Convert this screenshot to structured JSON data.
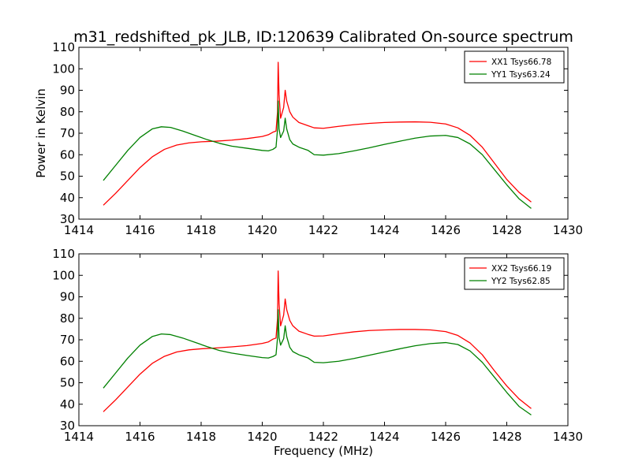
{
  "figure": {
    "title": "m31_redshifted_pk_JLB, ID:120639 Calibrated On-source spectrum",
    "xlabel": "Frequency (MHz)",
    "ylabel": "Power in Kelvin"
  },
  "chart_data": [
    {
      "type": "line",
      "title": "m31_redshifted_pk_JLB, ID:120639 Calibrated On-source spectrum",
      "xlabel": "",
      "ylabel": "Power in Kelvin",
      "xlim": [
        1414,
        1430
      ],
      "ylim": [
        30,
        110
      ],
      "xticks": [
        1414,
        1416,
        1418,
        1420,
        1422,
        1424,
        1426,
        1428,
        1430
      ],
      "yticks": [
        30,
        40,
        50,
        60,
        70,
        80,
        90,
        100,
        110
      ],
      "grid": false,
      "legend_position": "top-right",
      "series": [
        {
          "name": "XX1 Tsys66.78",
          "color": "#ff0000",
          "points": [
            [
              1414.8,
              36.5
            ],
            [
              1415.2,
              42
            ],
            [
              1415.6,
              48
            ],
            [
              1416.0,
              54
            ],
            [
              1416.4,
              59
            ],
            [
              1416.8,
              62.5
            ],
            [
              1417.2,
              64.5
            ],
            [
              1417.6,
              65.5
            ],
            [
              1418.0,
              66
            ],
            [
              1418.5,
              66.3
            ],
            [
              1419.0,
              66.8
            ],
            [
              1419.5,
              67.5
            ],
            [
              1420.0,
              68.5
            ],
            [
              1420.2,
              69.3
            ],
            [
              1420.35,
              70.5
            ],
            [
              1420.45,
              71
            ],
            [
              1420.5,
              80
            ],
            [
              1420.52,
              103
            ],
            [
              1420.55,
              88
            ],
            [
              1420.6,
              77
            ],
            [
              1420.7,
              82
            ],
            [
              1420.75,
              90
            ],
            [
              1420.8,
              85
            ],
            [
              1420.9,
              80
            ],
            [
              1421.0,
              77.5
            ],
            [
              1421.2,
              75
            ],
            [
              1421.5,
              73.5
            ],
            [
              1421.7,
              72.5
            ],
            [
              1422.0,
              72.3
            ],
            [
              1422.5,
              73.2
            ],
            [
              1423.0,
              74
            ],
            [
              1423.5,
              74.6
            ],
            [
              1424.0,
              75
            ],
            [
              1424.5,
              75.2
            ],
            [
              1425.0,
              75.3
            ],
            [
              1425.5,
              75.1
            ],
            [
              1426.0,
              74.3
            ],
            [
              1426.4,
              72.5
            ],
            [
              1426.8,
              69
            ],
            [
              1427.2,
              63.5
            ],
            [
              1427.6,
              56
            ],
            [
              1428.0,
              48.5
            ],
            [
              1428.4,
              42.5
            ],
            [
              1428.8,
              38
            ]
          ]
        },
        {
          "name": "YY1 Tsys63.24",
          "color": "#008000",
          "points": [
            [
              1414.8,
              48
            ],
            [
              1415.2,
              55
            ],
            [
              1415.6,
              62
            ],
            [
              1416.0,
              68
            ],
            [
              1416.4,
              72
            ],
            [
              1416.7,
              73
            ],
            [
              1417.0,
              72.7
            ],
            [
              1417.4,
              71
            ],
            [
              1417.8,
              69
            ],
            [
              1418.2,
              67
            ],
            [
              1418.6,
              65.3
            ],
            [
              1419.0,
              64
            ],
            [
              1419.5,
              63
            ],
            [
              1420.0,
              62
            ],
            [
              1420.2,
              61.8
            ],
            [
              1420.35,
              62.5
            ],
            [
              1420.45,
              63.5
            ],
            [
              1420.5,
              72
            ],
            [
              1420.52,
              85
            ],
            [
              1420.55,
              72
            ],
            [
              1420.6,
              68
            ],
            [
              1420.7,
              71
            ],
            [
              1420.75,
              77
            ],
            [
              1420.8,
              72
            ],
            [
              1420.9,
              67
            ],
            [
              1421.0,
              65
            ],
            [
              1421.2,
              63.5
            ],
            [
              1421.5,
              62
            ],
            [
              1421.7,
              60
            ],
            [
              1422.0,
              59.8
            ],
            [
              1422.5,
              60.5
            ],
            [
              1423.0,
              61.8
            ],
            [
              1423.5,
              63.2
            ],
            [
              1424.0,
              64.8
            ],
            [
              1424.5,
              66.3
            ],
            [
              1425.0,
              67.7
            ],
            [
              1425.5,
              68.7
            ],
            [
              1426.0,
              69
            ],
            [
              1426.4,
              68
            ],
            [
              1426.8,
              65
            ],
            [
              1427.2,
              60
            ],
            [
              1427.6,
              53
            ],
            [
              1428.0,
              46
            ],
            [
              1428.4,
              39.5
            ],
            [
              1428.8,
              35
            ]
          ]
        }
      ]
    },
    {
      "type": "line",
      "title": "",
      "xlabel": "Frequency (MHz)",
      "ylabel": "",
      "xlim": [
        1414,
        1430
      ],
      "ylim": [
        30,
        110
      ],
      "xticks": [
        1414,
        1416,
        1418,
        1420,
        1422,
        1424,
        1426,
        1428,
        1430
      ],
      "yticks": [
        30,
        40,
        50,
        60,
        70,
        80,
        90,
        100,
        110
      ],
      "grid": false,
      "legend_position": "top-right",
      "series": [
        {
          "name": "XX2 Tsys66.19",
          "color": "#ff0000",
          "points": [
            [
              1414.8,
              36.5
            ],
            [
              1415.2,
              42
            ],
            [
              1415.6,
              48
            ],
            [
              1416.0,
              54
            ],
            [
              1416.4,
              59
            ],
            [
              1416.8,
              62.3
            ],
            [
              1417.2,
              64.3
            ],
            [
              1417.6,
              65.3
            ],
            [
              1418.0,
              65.8
            ],
            [
              1418.5,
              66.2
            ],
            [
              1419.0,
              66.7
            ],
            [
              1419.5,
              67.3
            ],
            [
              1420.0,
              68.3
            ],
            [
              1420.2,
              69
            ],
            [
              1420.35,
              70.3
            ],
            [
              1420.45,
              70.8
            ],
            [
              1420.5,
              80
            ],
            [
              1420.52,
              102
            ],
            [
              1420.55,
              87
            ],
            [
              1420.6,
              76.5
            ],
            [
              1420.7,
              81.5
            ],
            [
              1420.75,
              89
            ],
            [
              1420.8,
              84
            ],
            [
              1420.9,
              79
            ],
            [
              1421.0,
              76.5
            ],
            [
              1421.2,
              74
            ],
            [
              1421.5,
              72.5
            ],
            [
              1421.7,
              71.7
            ],
            [
              1422.0,
              71.8
            ],
            [
              1422.5,
              72.8
            ],
            [
              1423.0,
              73.7
            ],
            [
              1423.5,
              74.3
            ],
            [
              1424.0,
              74.6
            ],
            [
              1424.5,
              74.8
            ],
            [
              1425.0,
              74.8
            ],
            [
              1425.5,
              74.6
            ],
            [
              1426.0,
              73.8
            ],
            [
              1426.4,
              72
            ],
            [
              1426.8,
              68.5
            ],
            [
              1427.2,
              63
            ],
            [
              1427.6,
              55.5
            ],
            [
              1428.0,
              48.5
            ],
            [
              1428.4,
              42.5
            ],
            [
              1428.8,
              38
            ]
          ]
        },
        {
          "name": "YY2 Tsys62.85",
          "color": "#008000",
          "points": [
            [
              1414.8,
              47.5
            ],
            [
              1415.2,
              54.5
            ],
            [
              1415.6,
              61.5
            ],
            [
              1416.0,
              67.5
            ],
            [
              1416.4,
              71.5
            ],
            [
              1416.7,
              72.7
            ],
            [
              1417.0,
              72.4
            ],
            [
              1417.4,
              70.8
            ],
            [
              1417.8,
              68.8
            ],
            [
              1418.2,
              66.8
            ],
            [
              1418.6,
              65
            ],
            [
              1419.0,
              63.8
            ],
            [
              1419.5,
              62.7
            ],
            [
              1420.0,
              61.7
            ],
            [
              1420.2,
              61.5
            ],
            [
              1420.35,
              62.2
            ],
            [
              1420.45,
              63
            ],
            [
              1420.5,
              71
            ],
            [
              1420.52,
              84
            ],
            [
              1420.55,
              71
            ],
            [
              1420.6,
              67.5
            ],
            [
              1420.7,
              70.5
            ],
            [
              1420.75,
              76.5
            ],
            [
              1420.8,
              71.5
            ],
            [
              1420.9,
              66.5
            ],
            [
              1421.0,
              64.5
            ],
            [
              1421.2,
              63
            ],
            [
              1421.5,
              61.5
            ],
            [
              1421.7,
              59.5
            ],
            [
              1422.0,
              59.3
            ],
            [
              1422.5,
              60
            ],
            [
              1423.0,
              61.3
            ],
            [
              1423.5,
              62.8
            ],
            [
              1424.0,
              64.3
            ],
            [
              1424.5,
              65.8
            ],
            [
              1425.0,
              67.2
            ],
            [
              1425.5,
              68.2
            ],
            [
              1426.0,
              68.7
            ],
            [
              1426.4,
              67.8
            ],
            [
              1426.8,
              64.8
            ],
            [
              1427.2,
              59.5
            ],
            [
              1427.6,
              52.5
            ],
            [
              1428.0,
              45.5
            ],
            [
              1428.4,
              39
            ],
            [
              1428.8,
              35
            ]
          ]
        }
      ]
    }
  ]
}
